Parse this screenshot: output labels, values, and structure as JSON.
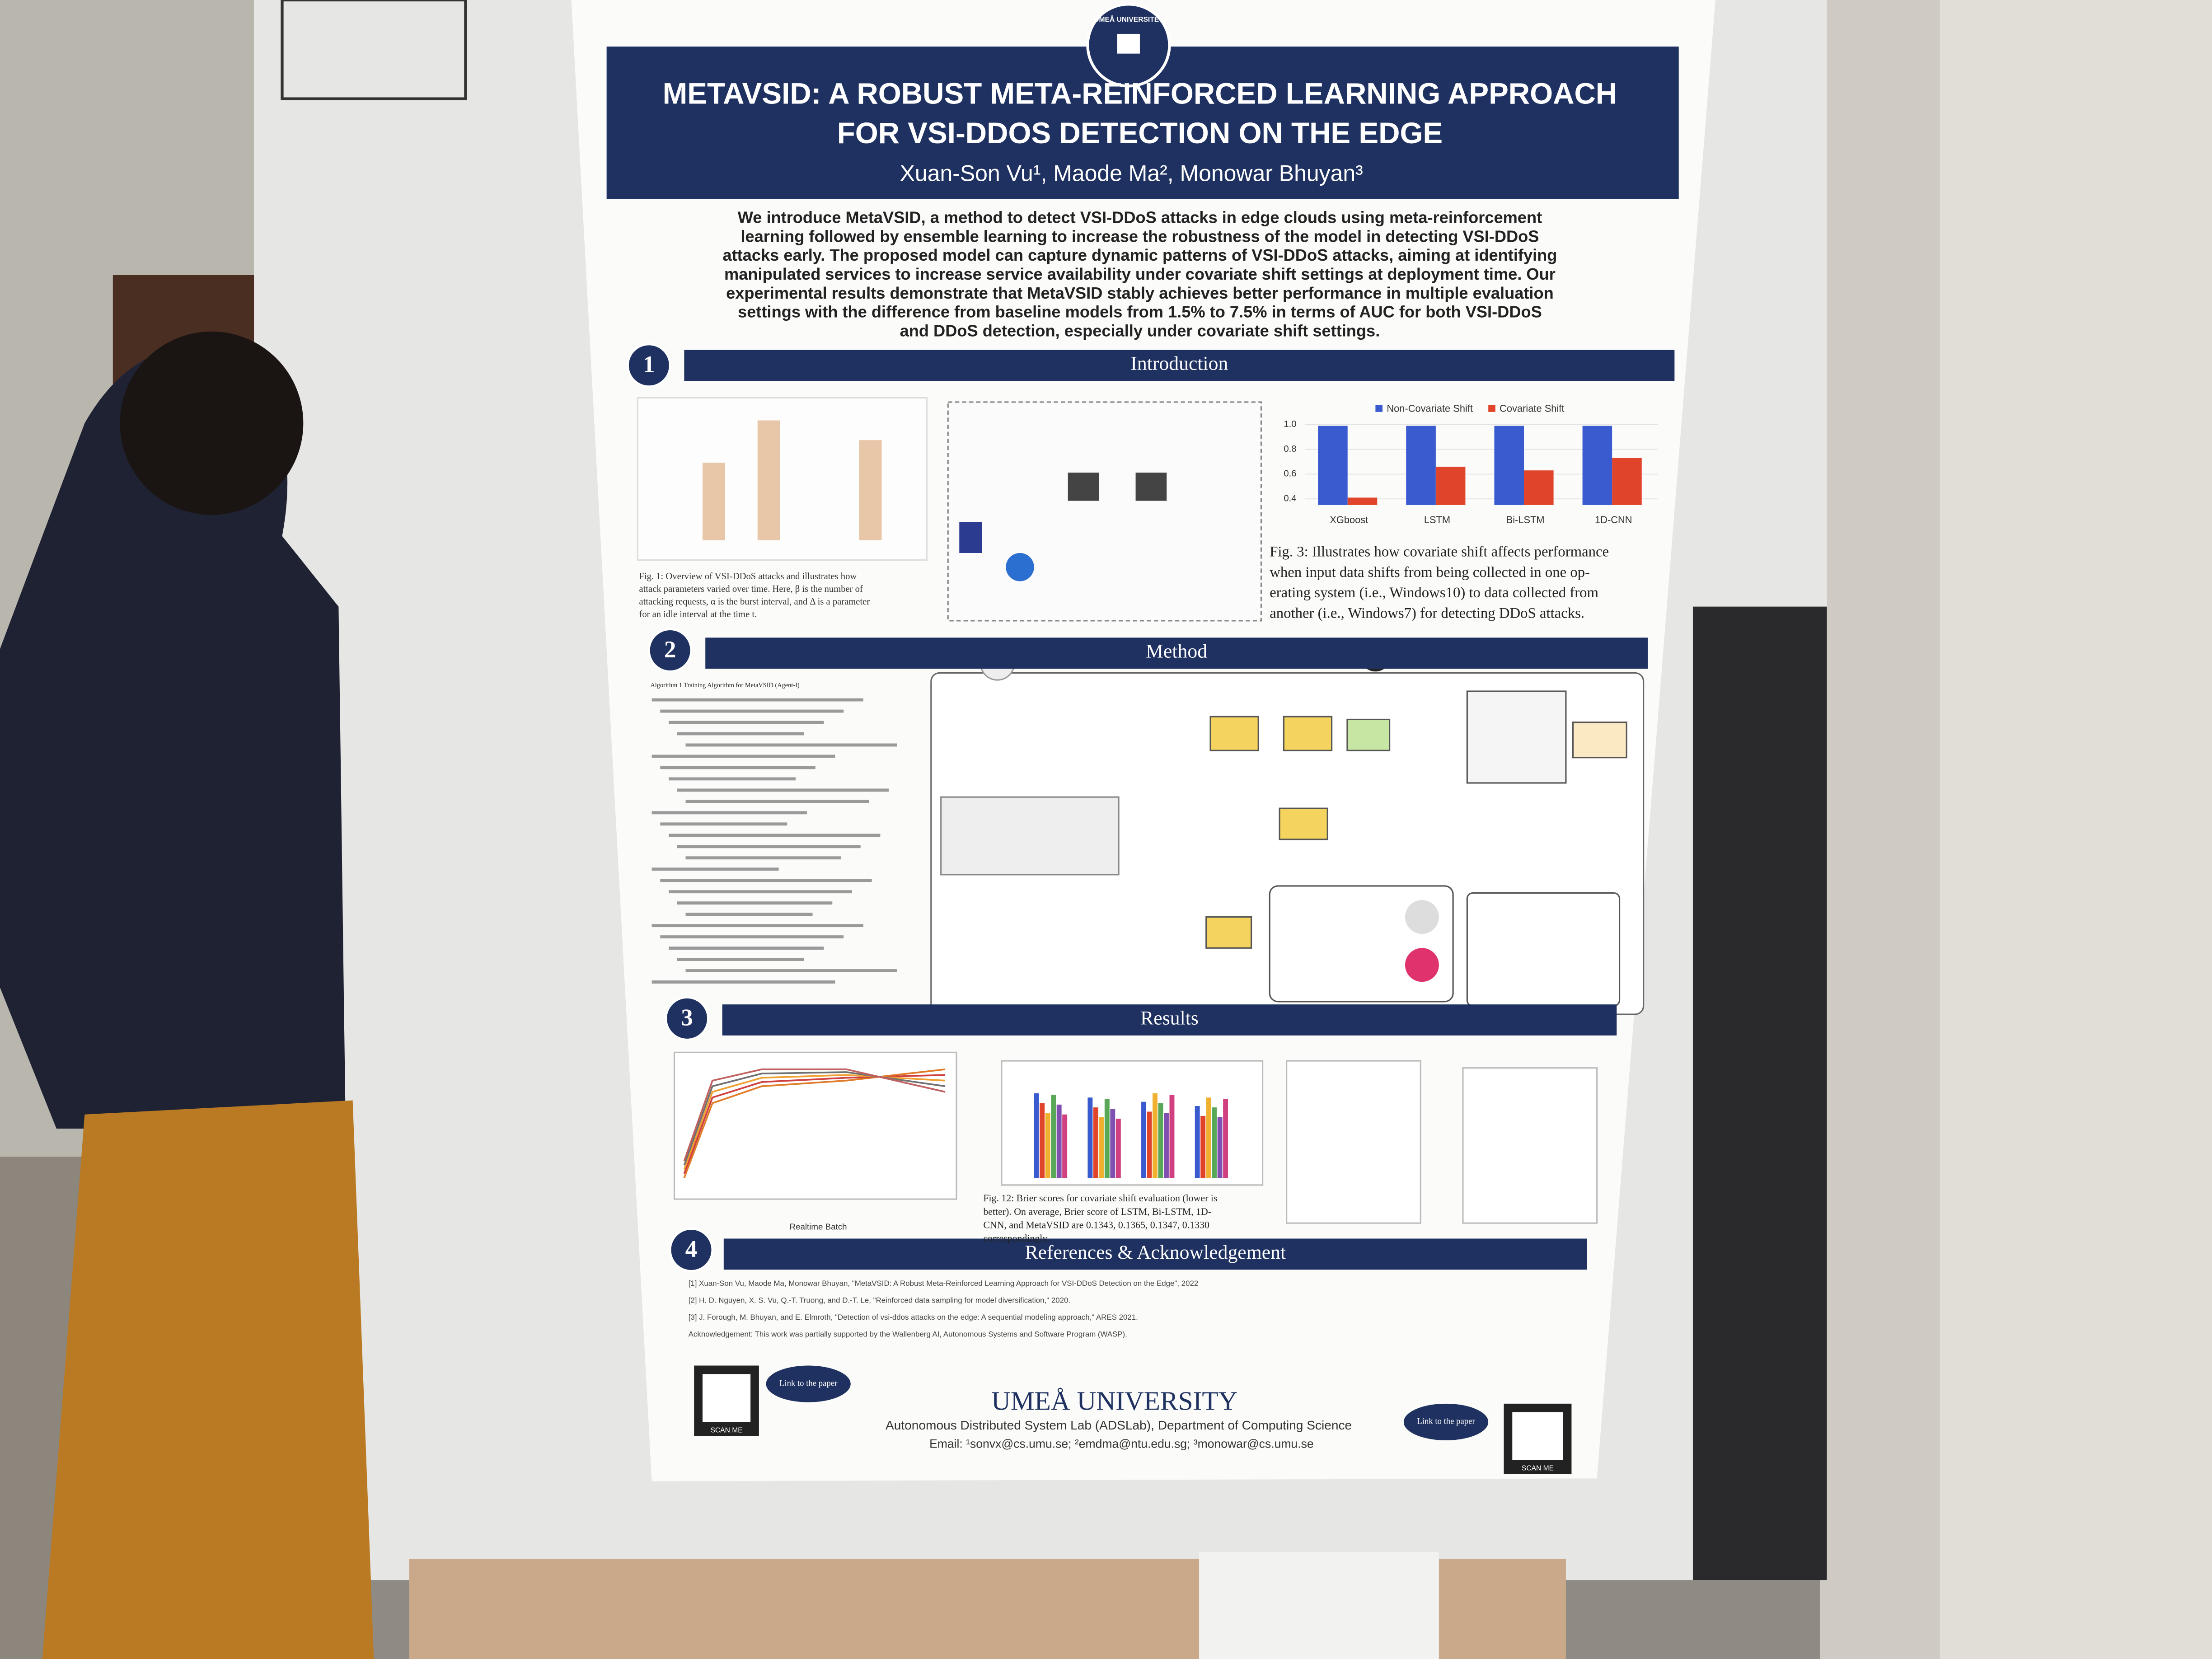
{
  "poster": {
    "logo": "UMEÅ UNIVERSITET",
    "title_lines": [
      "METAVSID: A ROBUST META-REINFORCED LEARNING APPROACH",
      "FOR VSI-DDOS DETECTION ON THE EDGE"
    ],
    "authors": "Xuan-Son Vu¹, Maode Ma², Monowar Bhuyan³",
    "abstract_lines": [
      "We introduce MetaVSID, a method to detect VSI-DDoS attacks in edge clouds using meta-reinforcement",
      "learning followed by ensemble learning to increase the robustness of the model in detecting VSI-DDoS",
      "attacks early. The proposed model can capture dynamic patterns of VSI-DDoS attacks, aiming at identifying",
      "manipulated services to increase service availability under covariate shift settings at deployment time. Our",
      "experimental results demonstrate that MetaVSID stably achieves better performance in multiple evaluation",
      "settings with the difference from baseline models from 1.5% to 7.5% in terms of AUC for both VSI-DDoS",
      "and DDoS detection, especially under covariate shift settings."
    ],
    "sections": [
      {
        "number": "1",
        "title": "Introduction"
      },
      {
        "number": "2",
        "title": "Method"
      },
      {
        "number": "3",
        "title": "Results"
      },
      {
        "number": "4",
        "title": "References & Acknowledgement"
      }
    ],
    "fig1_caption_lines": [
      "Fig. 1: Overview of VSI-DDoS attacks and illustrates how",
      "attack parameters varied over time. Here, β is the number of",
      "attacking requests, α is the burst interval, and Δ is a parameter",
      "for an idle interval at the time t."
    ],
    "fig3": {
      "type": "bar",
      "categories": [
        "XGboost",
        "LSTM",
        "Bi-LSTM",
        "1D-CNN"
      ],
      "series": [
        {
          "name": "Non-Covariate Shift",
          "color": "#3a5bd0",
          "values": [
            0.99,
            0.99,
            0.99,
            0.99
          ]
        },
        {
          "name": "Covariate Shift",
          "color": "#e0452c",
          "values": [
            0.41,
            0.66,
            0.63,
            0.73
          ]
        }
      ],
      "ylim": [
        0.35,
        1.0
      ],
      "yticks": [
        0.4,
        0.6,
        0.8,
        {
          "value": 1,
          "label": "1.0"
        }
      ]
    },
    "fig3_caption_lines": [
      "Fig. 3: Illustrates how covariate shift affects performance",
      "when input data shifts from being collected in one op-",
      "erating system (i.e., Windows10) to data collected from",
      "another (i.e., Windows7) for detecting DDoS attacks."
    ],
    "algorithm_title": "Algorithm 1 Training Algorithm for MetaVSID (Agent-I)",
    "results_x_label": "Realtime Batch",
    "fig12_caption_lines": [
      "Fig. 12: Brier scores for covariate shift evaluation (lower is",
      "better). On average, Brier score of LSTM, Bi-LSTM, 1D-",
      "CNN, and MetaVSID are 0.1343, 0.1365, 0.1347, 0.1330",
      "correspondingly."
    ],
    "references": [
      "[1] Xuan-Son Vu, Maode Ma, Monowar Bhuyan, \"MetaVSID: A Robust Meta-Reinforced Learning Approach for VSI-DDoS Detection on the Edge\", 2022",
      "[2] H. D. Nguyen, X. S. Vu, Q.-T. Truong, and D.-T. Le, \"Reinforced data sampling for model diversification,\" 2020.",
      "[3] J. Forough, M. Bhuyan, and E. Elmroth, \"Detection of vsi-ddos attacks on the edge: A sequential modeling approach,\" ARES 2021.",
      "Acknowledgement: This work was partially supported by the Wallenberg AI, Autonomous Systems and Software Program (WASP)."
    ],
    "link_label": "Link to the paper",
    "scan_me": "SCAN ME",
    "university": "UMEÅ UNIVERSITY",
    "lab": "Autonomous Distributed System Lab (ADSLab), Department of Computing Science",
    "email": "Email: ¹sonvx@cs.umu.se; ²emdma@ntu.edu.sg; ³monowar@cs.umu.se"
  }
}
